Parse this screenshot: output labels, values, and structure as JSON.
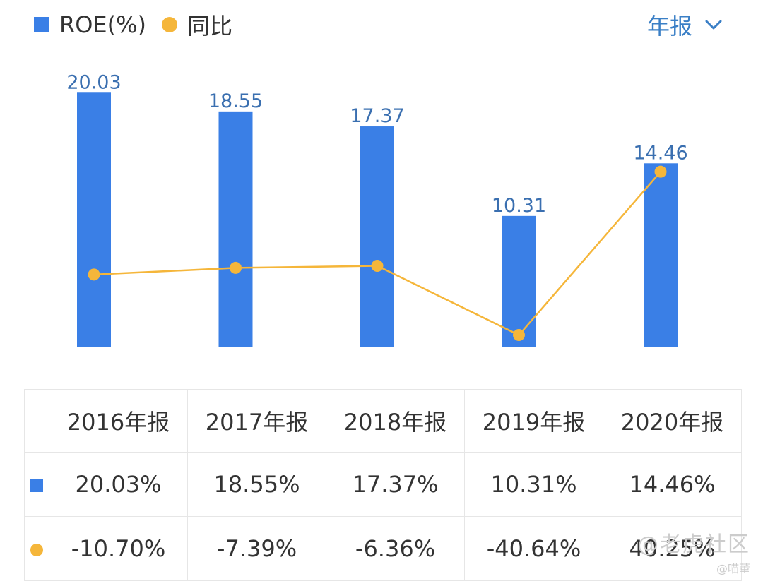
{
  "legend": {
    "bar_label": "ROE(%)",
    "line_label": "同比"
  },
  "period_selector": {
    "label": "年报",
    "icon": "chevron-down-icon"
  },
  "chart_data": {
    "type": "bar",
    "categories": [
      "2016年报",
      "2017年报",
      "2018年报",
      "2019年报",
      "2020年报"
    ],
    "series": [
      {
        "name": "ROE(%)",
        "type": "bar",
        "color": "#3a7fe6",
        "values": [
          20.03,
          18.55,
          17.37,
          10.31,
          14.46
        ]
      },
      {
        "name": "同比",
        "type": "line",
        "color": "#f5b63a",
        "values": [
          -10.7,
          -7.39,
          -6.36,
          -40.64,
          40.25
        ]
      }
    ],
    "data_labels": [
      "20.03",
      "18.55",
      "17.37",
      "10.31",
      "14.46"
    ],
    "legend_position": "top-left",
    "grid": false
  },
  "table": {
    "headers": [
      "2016年报",
      "2017年报",
      "2018年报",
      "2019年报",
      "2020年报"
    ],
    "roe_row": [
      "20.03%",
      "18.55%",
      "17.37%",
      "10.31%",
      "14.46%"
    ],
    "yoy_row": [
      "-10.70%",
      "-7.39%",
      "-6.36%",
      "-40.64%",
      "40.25%"
    ]
  },
  "colors": {
    "bar": "#3a7fe6",
    "line": "#f5b63a",
    "negative": "#22a06b",
    "positive": "#e04a4a",
    "label": "#3a6fb0"
  },
  "watermark": {
    "main": "@老虎社区",
    "sub": "@喵董"
  }
}
